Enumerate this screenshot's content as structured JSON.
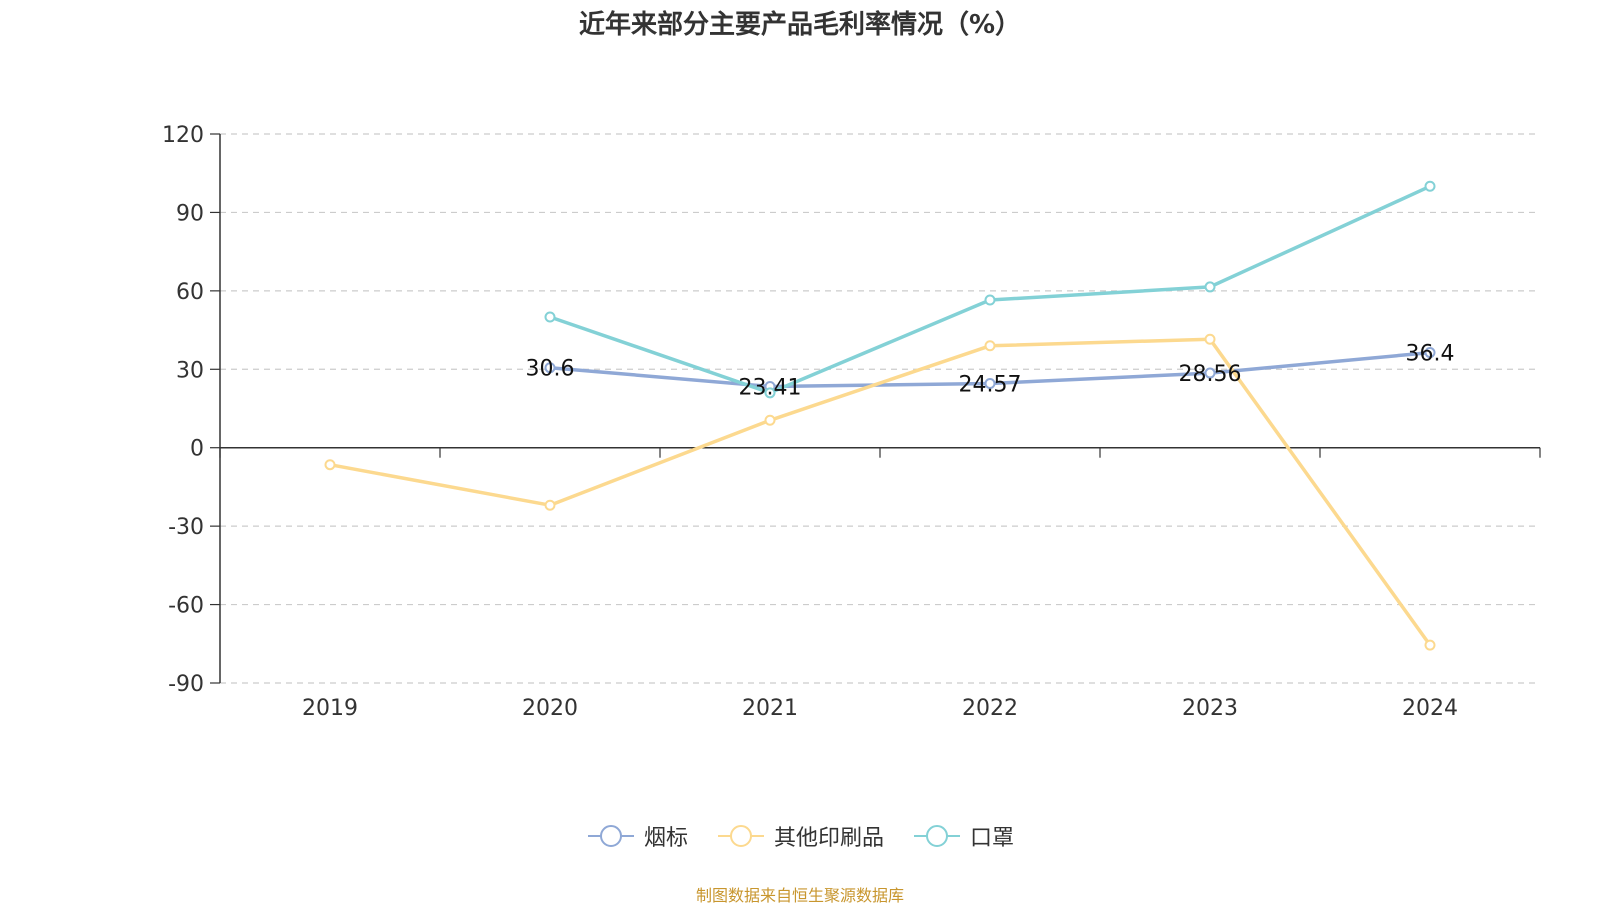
{
  "chart_data": {
    "type": "line",
    "title": "近年来部分主要产品毛利率情况（%）",
    "categories": [
      "2019",
      "2020",
      "2021",
      "2022",
      "2023",
      "2024"
    ],
    "ylim": [
      -90,
      120
    ],
    "yticks": [
      "120",
      "90",
      "60",
      "30",
      "0",
      "-30",
      "-60",
      "-90"
    ],
    "grid": true,
    "legend_position": "bottom",
    "series": [
      {
        "name": "烟标",
        "color": "#8fa8d6",
        "values": [
          null,
          30.6,
          23.41,
          24.57,
          28.56,
          36.4
        ],
        "labels": [
          null,
          "30.6",
          "23.41",
          "24.57",
          "28.56",
          "36.4"
        ]
      },
      {
        "name": "其他印刷品",
        "color": "#fcd98f",
        "values": [
          -6.5,
          -22,
          10.5,
          39,
          41.5,
          -75.5
        ],
        "labels": [
          null,
          null,
          null,
          null,
          null,
          null
        ]
      },
      {
        "name": "口罩",
        "color": "#83d1d6",
        "values": [
          null,
          50,
          21,
          56.5,
          61.5,
          100
        ],
        "labels": [
          null,
          null,
          null,
          null,
          null,
          null
        ]
      }
    ]
  },
  "legend": {
    "items": [
      "烟标",
      "其他印刷品",
      "口罩"
    ]
  },
  "footer": {
    "source": "制图数据来自恒生聚源数据库"
  }
}
